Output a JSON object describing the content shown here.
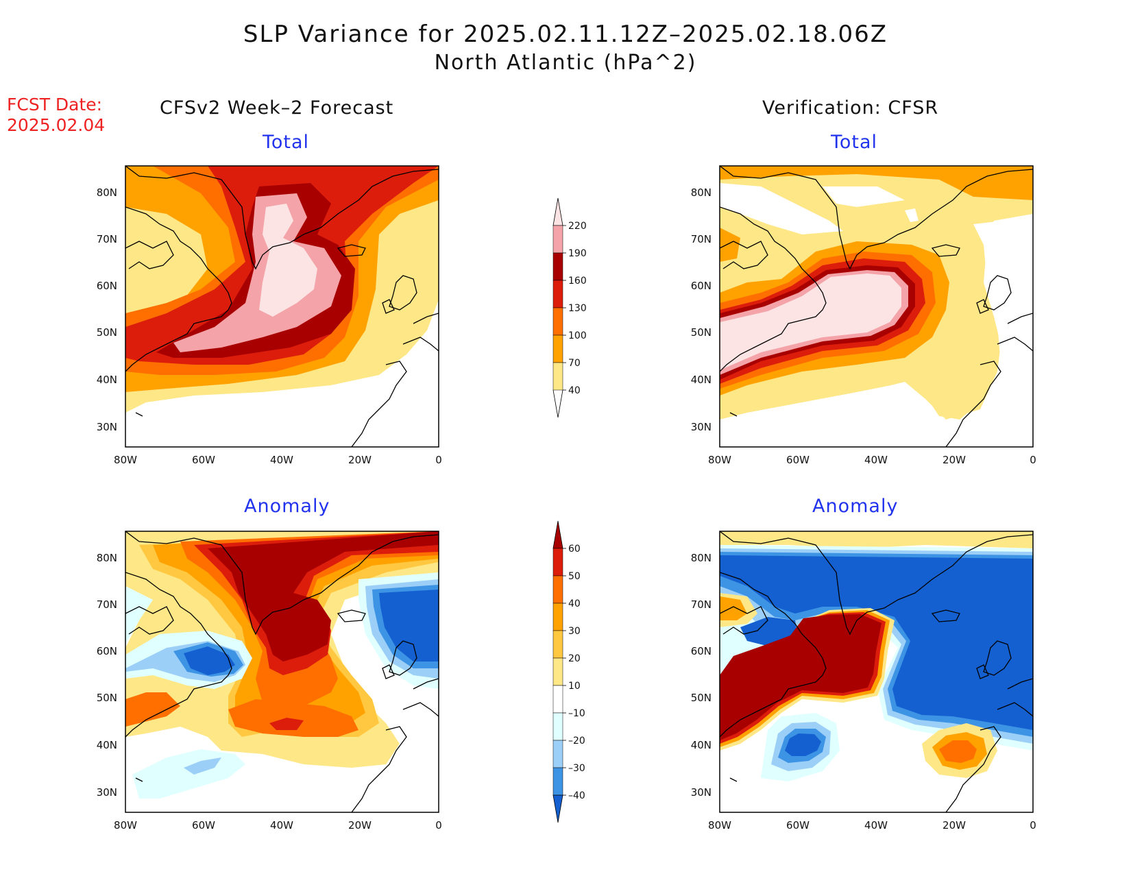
{
  "title": {
    "line1": "SLP Variance for 2025.02.11.12Z–2025.02.18.06Z",
    "line2": "North Atlantic (hPa^2)"
  },
  "forecast_date": {
    "label": "FCST Date:",
    "value": "2025.02.04"
  },
  "columns": {
    "left": "CFSv2 Week–2 Forecast",
    "right": "Verification: CFSR"
  },
  "panels": [
    {
      "id": "forecast-total",
      "subtitle": "Total",
      "colorbar": "total"
    },
    {
      "id": "verification-total",
      "subtitle": "Total",
      "colorbar": "total"
    },
    {
      "id": "forecast-anomaly",
      "subtitle": "Anomaly",
      "colorbar": "anomaly"
    },
    {
      "id": "verification-anomaly",
      "subtitle": "Anomaly",
      "colorbar": "anomaly"
    }
  ],
  "axes": {
    "lon_ticks": [
      "80W",
      "60W",
      "40W",
      "20W",
      "0"
    ],
    "lat_ticks": [
      "80N",
      "70N",
      "60N",
      "50N",
      "40N",
      "30N"
    ]
  },
  "colorbars": {
    "total": {
      "levels": [
        "220",
        "190",
        "160",
        "130",
        "100",
        "70",
        "40"
      ],
      "colors": [
        "#fde4e4",
        "#f4a3a8",
        "#a80000",
        "#dd1d0c",
        "#ff6f00",
        "#ffa200",
        "#fee787"
      ]
    },
    "anomaly": {
      "levels": [
        "60",
        "50",
        "40",
        "30",
        "20",
        "10",
        "–10",
        "–20",
        "–30",
        "–40"
      ],
      "colors": [
        "#a80000",
        "#dd1d0c",
        "#ff6f00",
        "#ffa200",
        "#ffc840",
        "#fee787",
        "#ffffff",
        "#e0ffff",
        "#9ccff8",
        "#3d93e4",
        "#1460d0"
      ]
    }
  },
  "palette": {
    "t1": "#fee787",
    "t2": "#ffa200",
    "t3": "#ff6f00",
    "t4": "#dd1d0c",
    "t5": "#a80000",
    "t6": "#f4a3a8",
    "t7": "#fde4e4",
    "b0": "#e0ffff",
    "b1": "#9ccff8",
    "b2": "#3d93e4",
    "b3": "#1460d0",
    "subtitle": "#2233ee",
    "fcst": "#ee2222"
  }
}
